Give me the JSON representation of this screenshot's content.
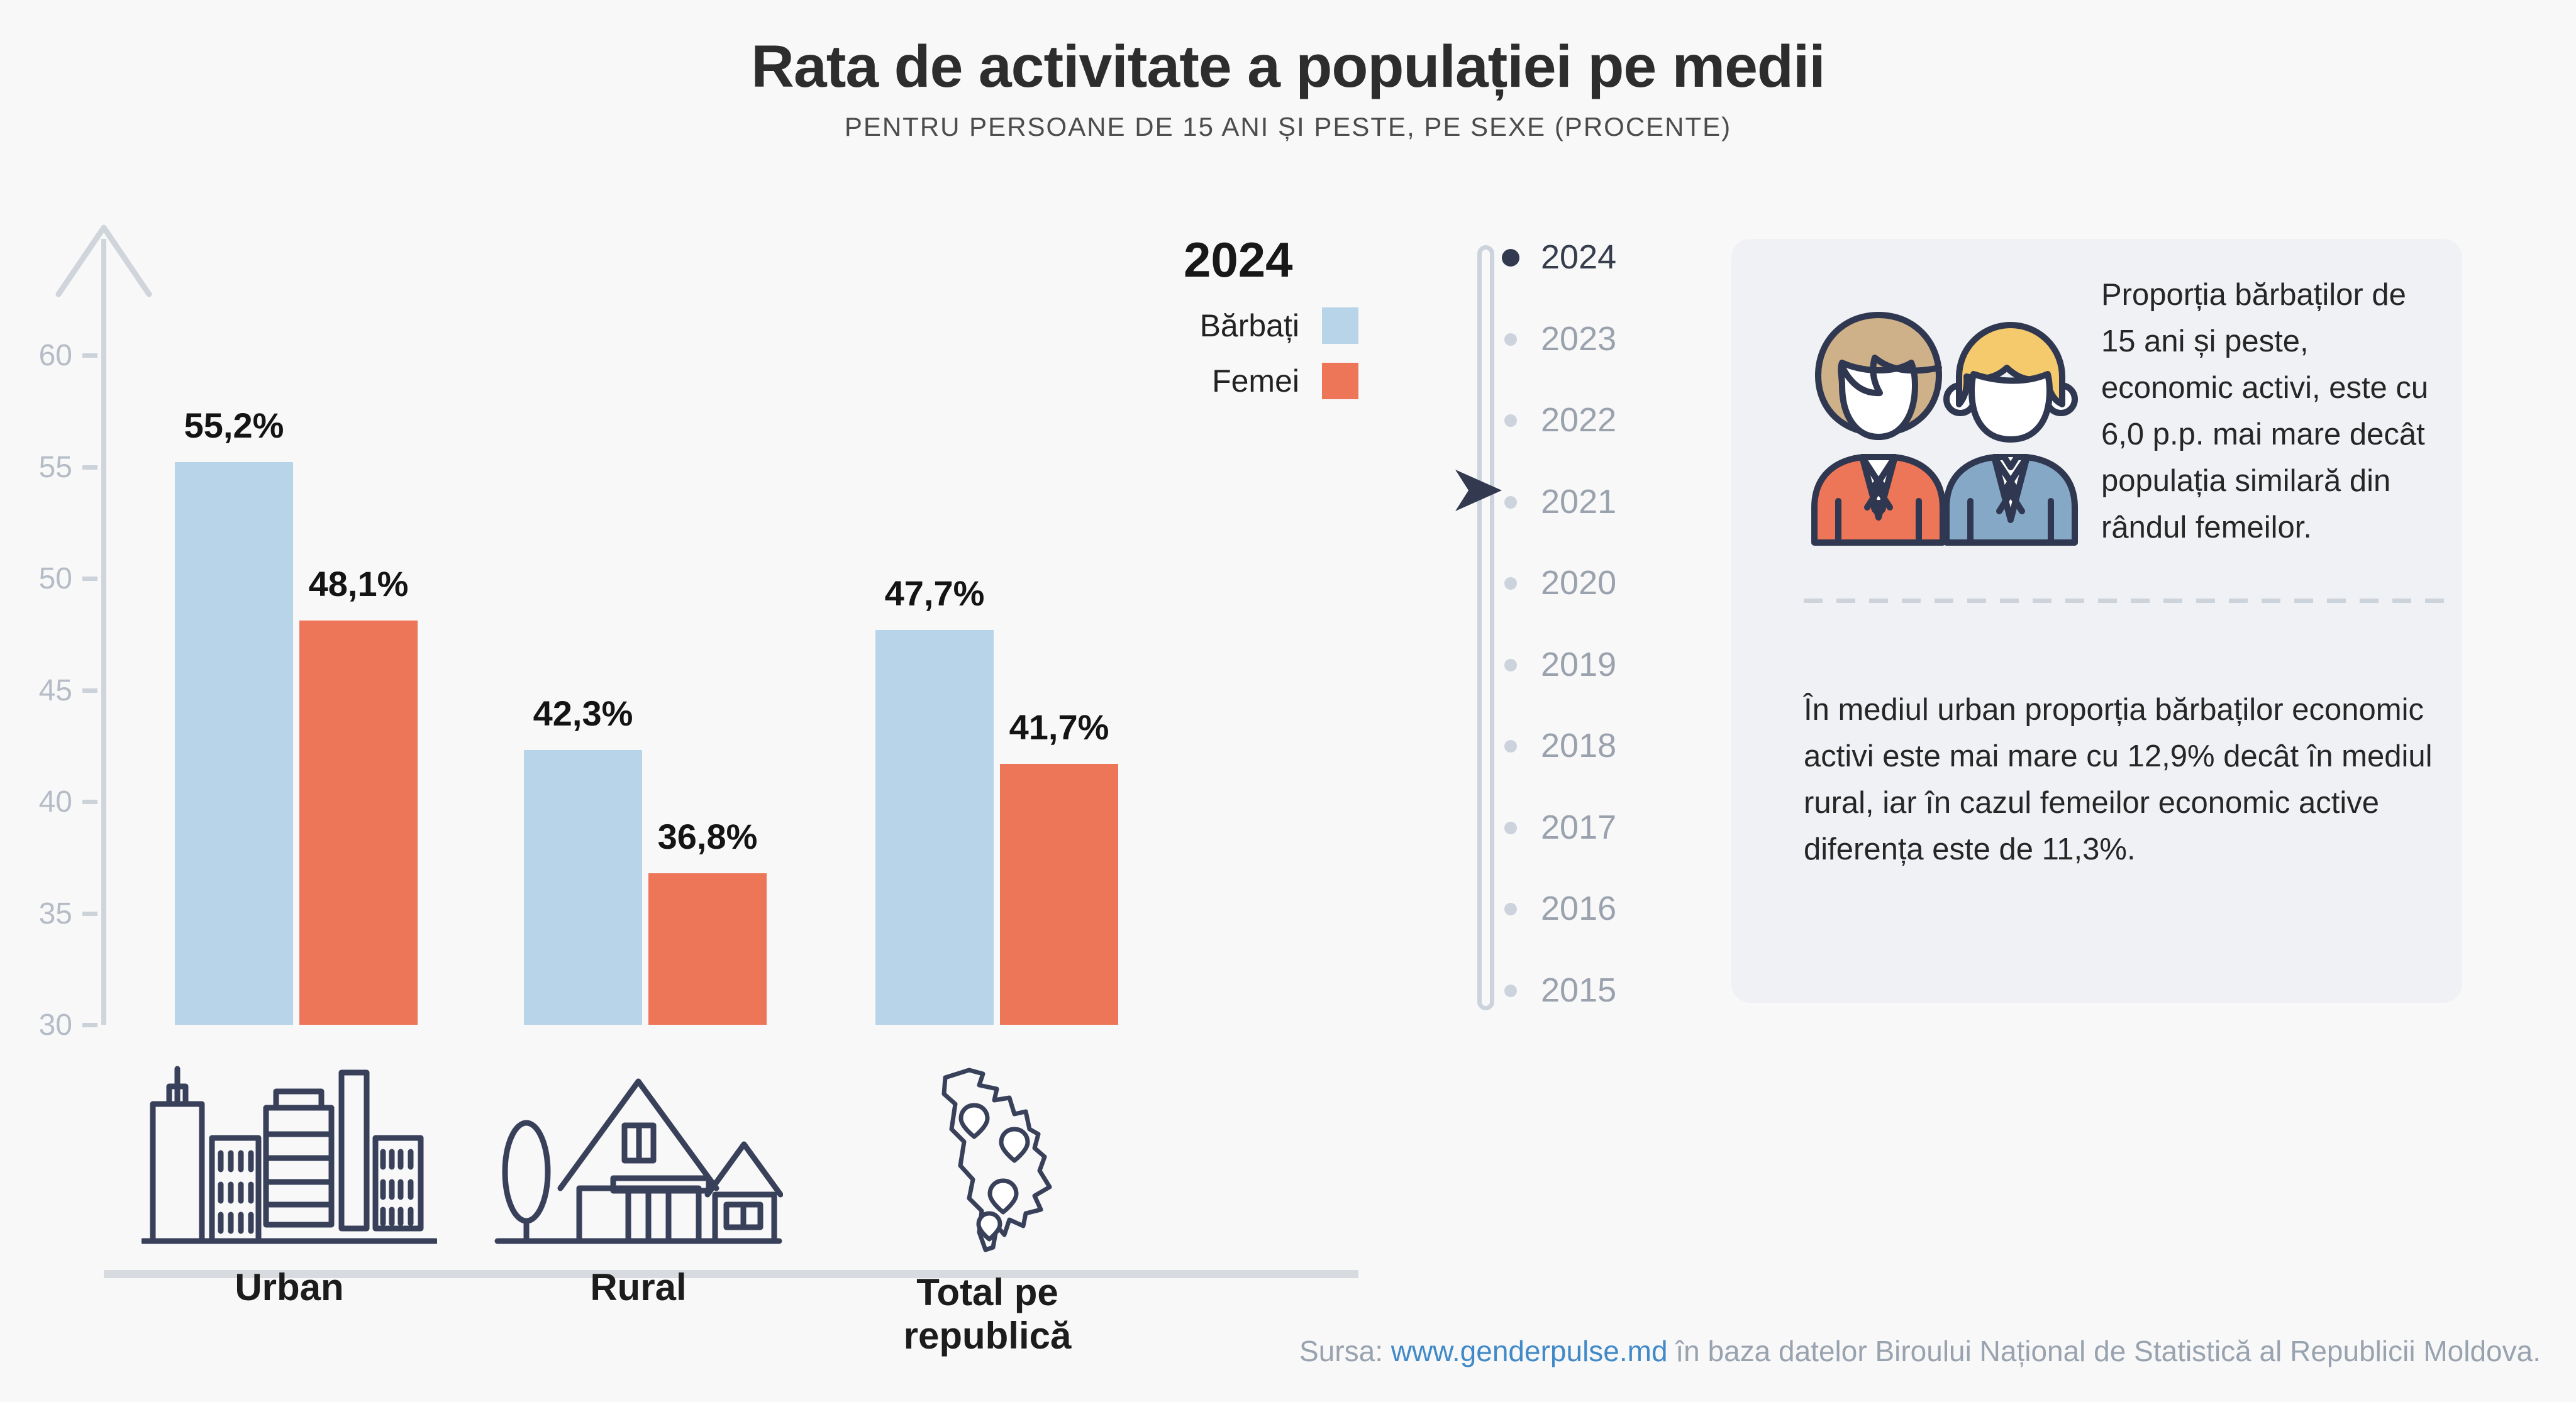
{
  "header": {
    "title": "Rata de activitate a populației pe medii",
    "subtitle": "PENTRU PERSOANE DE 15 ANI ȘI PESTE, PE SEXE (PROCENTE)"
  },
  "legend": {
    "year": "2024",
    "items": [
      {
        "label": "Bărbați",
        "color": "#b8d4e8"
      },
      {
        "label": "Femei",
        "color": "#ec7657"
      }
    ]
  },
  "chart_data": {
    "type": "bar",
    "categories": [
      "Urban",
      "Rural",
      "Total pe republică"
    ],
    "series": [
      {
        "name": "Bărbați",
        "values": [
          55.2,
          42.3,
          47.7
        ],
        "labels": [
          "55,2%",
          "42,3%",
          "47,7%"
        ],
        "color": "#b8d4e8"
      },
      {
        "name": "Femei",
        "values": [
          48.1,
          36.8,
          41.7
        ],
        "labels": [
          "48,1%",
          "36,8%",
          "41,7%"
        ],
        "color": "#ec7657"
      }
    ],
    "title": "Rata de activitate a populației pe medii",
    "xlabel": "",
    "ylabel": "",
    "ylim": [
      30,
      63
    ],
    "yticks": [
      30,
      35,
      40,
      45,
      50,
      55,
      60
    ],
    "grid": false,
    "legend_position": "top-right",
    "category_icons": [
      "city-icon",
      "house-icon",
      "moldova-map-icon"
    ]
  },
  "timeline": {
    "selected": "2024",
    "years": [
      "2024",
      "2023",
      "2022",
      "2021",
      "2020",
      "2019",
      "2018",
      "2017",
      "2016",
      "2015"
    ]
  },
  "panel": {
    "paragraph1": "Proporția bărbaților de 15 ani și peste, economic activi, este cu 6,0 p.p. mai mare decât populația similară din rândul femeilor.",
    "paragraph2": "În mediul urban proporția bărbaților economic activi este mai mare cu 12,9% decât în mediul rural, iar în cazul femeilor economic active diferența este de 11,3%.",
    "icon": "man-woman-icon"
  },
  "footer": {
    "prefix": "Sursa: ",
    "link": "www.genderpulse.md",
    "suffix": " în baza datelor Biroului Național de Statistică al Republicii Moldova."
  },
  "colors": {
    "background": "#f8f8f9",
    "card_background": "#f0f1f4",
    "men_bar": "#b8d4e8",
    "women_bar": "#ec7657",
    "axis_gray": "#cfd5db",
    "year_inactive": "#9aa2ad",
    "year_active": "#363d4c",
    "navy_outline": "#333a50",
    "link_blue": "#4189c7"
  }
}
